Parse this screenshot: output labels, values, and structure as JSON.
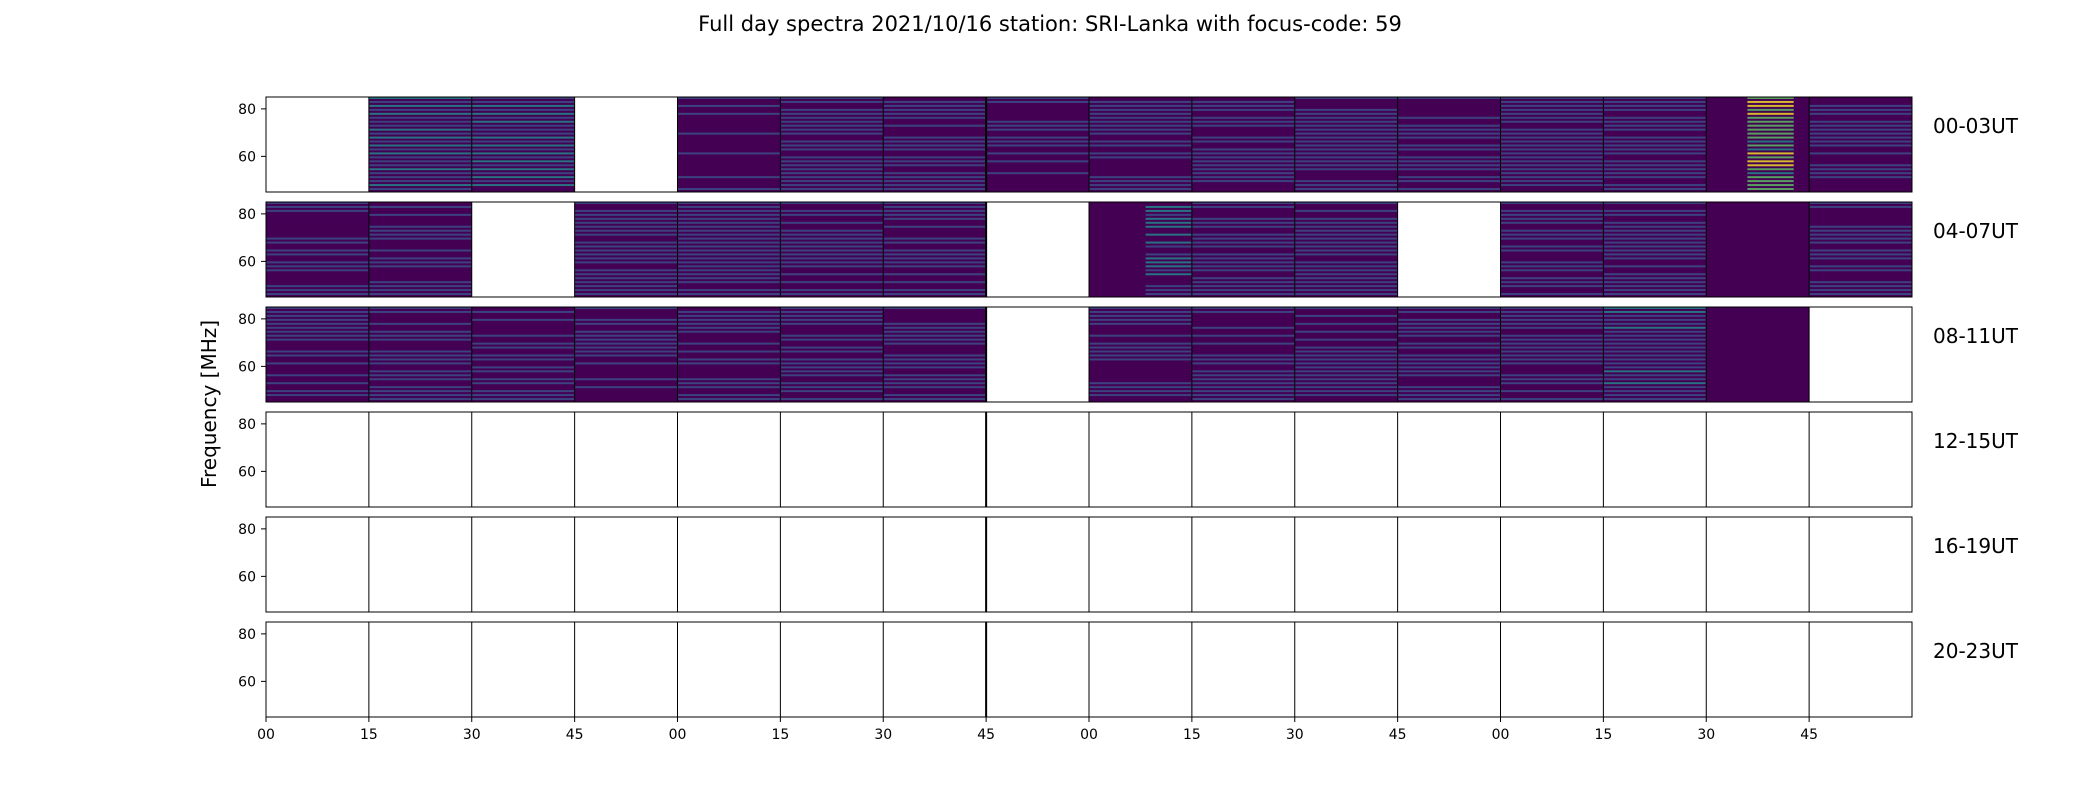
{
  "chart_data": {
    "type": "heatmap",
    "title": "Full day spectra 2021/10/16 station: SRI-Lanka with focus-code: 59",
    "ylabel": "Frequency [MHz]",
    "xlabel": "",
    "ylim": [
      45,
      85
    ],
    "y_ticks": [
      "80",
      "60"
    ],
    "x_ticks": [
      "00",
      "15",
      "30",
      "45",
      "00",
      "15",
      "30",
      "45",
      "00",
      "15",
      "30",
      "45",
      "00",
      "15",
      "30",
      "45"
    ],
    "colormap": [
      "#440154",
      "#3b528b",
      "#21908d",
      "#5dc863",
      "#fde725"
    ],
    "rows": [
      {
        "label": "00-03UT",
        "cells": [
          {
            "data": false
          },
          {
            "data": true,
            "level": 0.25,
            "pattern": "hstripes"
          },
          {
            "data": true,
            "level": 0.25,
            "pattern": "hstripes"
          },
          {
            "data": false
          },
          {
            "data": true,
            "level": 0.15,
            "pattern": "noise"
          },
          {
            "data": true,
            "level": 0.2,
            "pattern": "noise"
          },
          {
            "data": true,
            "level": 0.2,
            "pattern": "noise"
          },
          {
            "data": true,
            "level": 0.15,
            "pattern": "noise"
          },
          {
            "data": true,
            "level": 0.2,
            "pattern": "noise"
          },
          {
            "data": true,
            "level": 0.2,
            "pattern": "noise"
          },
          {
            "data": true,
            "level": 0.2,
            "pattern": "noise"
          },
          {
            "data": true,
            "level": 0.15,
            "pattern": "noise"
          },
          {
            "data": true,
            "level": 0.25,
            "pattern": "noise"
          },
          {
            "data": true,
            "level": 0.25,
            "pattern": "noise"
          },
          {
            "data": true,
            "level": 0.9,
            "pattern": "burst"
          },
          {
            "data": true,
            "level": 0.2,
            "pattern": "noise"
          }
        ]
      },
      {
        "label": "04-07UT",
        "cells": [
          {
            "data": true,
            "level": 0.2,
            "pattern": "noise"
          },
          {
            "data": true,
            "level": 0.2,
            "pattern": "noise"
          },
          {
            "data": false
          },
          {
            "data": true,
            "level": 0.2,
            "pattern": "noise"
          },
          {
            "data": true,
            "level": 0.3,
            "pattern": "noise"
          },
          {
            "data": true,
            "level": 0.2,
            "pattern": "noise"
          },
          {
            "data": true,
            "level": 0.2,
            "pattern": "noise"
          },
          {
            "data": false
          },
          {
            "data": true,
            "level": 0.45,
            "pattern": "burst"
          },
          {
            "data": true,
            "level": 0.2,
            "pattern": "noise"
          },
          {
            "data": true,
            "level": 0.2,
            "pattern": "noise"
          },
          {
            "data": false
          },
          {
            "data": true,
            "level": 0.2,
            "pattern": "noise"
          },
          {
            "data": true,
            "level": 0.2,
            "pattern": "noise"
          },
          {
            "data": true,
            "level": 0.0,
            "pattern": "flat"
          },
          {
            "data": true,
            "level": 0.2,
            "pattern": "noise"
          }
        ]
      },
      {
        "label": "08-11UT",
        "cells": [
          {
            "data": true,
            "level": 0.2,
            "pattern": "noise"
          },
          {
            "data": true,
            "level": 0.2,
            "pattern": "noise"
          },
          {
            "data": true,
            "level": 0.2,
            "pattern": "noise"
          },
          {
            "data": true,
            "level": 0.2,
            "pattern": "noise"
          },
          {
            "data": true,
            "level": 0.2,
            "pattern": "noise"
          },
          {
            "data": true,
            "level": 0.2,
            "pattern": "noise"
          },
          {
            "data": true,
            "level": 0.2,
            "pattern": "noise"
          },
          {
            "data": false
          },
          {
            "data": true,
            "level": 0.2,
            "pattern": "noise"
          },
          {
            "data": true,
            "level": 0.2,
            "pattern": "noise"
          },
          {
            "data": true,
            "level": 0.2,
            "pattern": "noise"
          },
          {
            "data": true,
            "level": 0.25,
            "pattern": "noise"
          },
          {
            "data": true,
            "level": 0.2,
            "pattern": "noise"
          },
          {
            "data": true,
            "level": 0.35,
            "pattern": "noise"
          },
          {
            "data": true,
            "level": 0.1,
            "pattern": "flat"
          },
          {
            "data": false
          }
        ]
      },
      {
        "label": "12-15UT",
        "cells": []
      },
      {
        "label": "16-19UT",
        "cells": []
      },
      {
        "label": "20-23UT",
        "cells": []
      }
    ]
  }
}
